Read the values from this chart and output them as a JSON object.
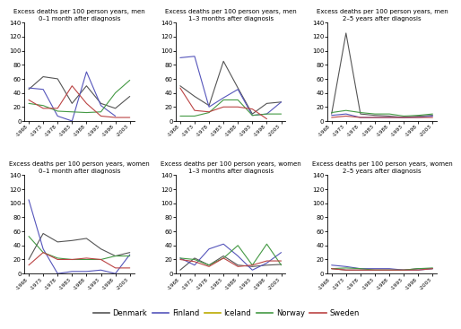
{
  "x_labels": [
    "-1968",
    "-1973",
    "-1978",
    "-1983",
    "-1988",
    "-1993",
    "-1998",
    "-2003"
  ],
  "x_values": [
    0,
    1,
    2,
    3,
    4,
    5,
    6,
    7
  ],
  "ylim": [
    0,
    140
  ],
  "yticks": [
    0,
    20,
    40,
    60,
    80,
    100,
    120,
    140
  ],
  "panels": [
    {
      "title_line1": "Excess deaths per 100 person years, men",
      "title_line2": "0–1 month after diagnosis",
      "denmark": [
        45,
        63,
        60,
        25,
        50,
        25,
        18,
        35
      ],
      "finland": [
        47,
        45,
        7,
        0,
        70,
        22,
        7,
        null
      ],
      "iceland": [
        null,
        null,
        null,
        null,
        null,
        null,
        null,
        null
      ],
      "norway": [
        25,
        22,
        14,
        13,
        12,
        13,
        40,
        58
      ],
      "sweden": [
        30,
        18,
        18,
        50,
        25,
        7,
        5,
        5
      ]
    },
    {
      "title_line1": "Excess deaths per 100 person years, men",
      "title_line2": "1–3 months after diagnosis",
      "denmark": [
        50,
        35,
        22,
        85,
        47,
        10,
        25,
        27
      ],
      "finland": [
        90,
        92,
        20,
        33,
        45,
        8,
        10,
        27
      ],
      "iceland": [
        null,
        null,
        null,
        null,
        null,
        null,
        null,
        null
      ],
      "norway": [
        7,
        7,
        12,
        30,
        30,
        8,
        10,
        10
      ],
      "sweden": [
        47,
        15,
        13,
        20,
        20,
        17,
        3,
        null
      ]
    },
    {
      "title_line1": "Excess deaths per 100 person years, men",
      "title_line2": "2–5 years after diagnosis",
      "denmark": [
        10,
        125,
        10,
        8,
        7,
        5,
        7,
        8
      ],
      "finland": [
        8,
        10,
        5,
        5,
        5,
        5,
        5,
        7
      ],
      "iceland": [
        null,
        null,
        null,
        null,
        null,
        null,
        null,
        null
      ],
      "norway": [
        12,
        15,
        12,
        10,
        10,
        7,
        8,
        10
      ],
      "sweden": [
        5,
        7,
        5,
        5,
        5,
        5,
        5,
        5
      ]
    },
    {
      "title_line1": "Excess deaths per 100 person years, women",
      "title_line2": "0–1 month after diagnosis",
      "denmark": [
        20,
        57,
        45,
        47,
        50,
        35,
        25,
        30
      ],
      "finland": [
        105,
        35,
        0,
        3,
        3,
        5,
        0,
        27
      ],
      "iceland": [
        null,
        null,
        null,
        null,
        null,
        null,
        null,
        null
      ],
      "norway": [
        53,
        30,
        22,
        20,
        20,
        20,
        25,
        25
      ],
      "sweden": [
        12,
        30,
        20,
        20,
        22,
        20,
        8,
        8
      ]
    },
    {
      "title_line1": "Excess deaths per 100 person years, women",
      "title_line2": "1–3 months after diagnosis",
      "denmark": [
        5,
        22,
        12,
        25,
        12,
        10,
        12,
        13
      ],
      "finland": [
        22,
        12,
        35,
        42,
        25,
        5,
        15,
        30
      ],
      "iceland": [
        null,
        null,
        null,
        null,
        null,
        null,
        null,
        null
      ],
      "norway": [
        22,
        20,
        12,
        22,
        40,
        12,
        42,
        12
      ],
      "sweden": [
        20,
        17,
        10,
        22,
        10,
        12,
        18,
        18
      ]
    },
    {
      "title_line1": "Excess deaths per 100 person years, women",
      "title_line2": "2–5 years after diagnosis",
      "denmark": [
        7,
        5,
        5,
        5,
        5,
        5,
        7,
        7
      ],
      "finland": [
        12,
        10,
        7,
        7,
        7,
        5,
        5,
        7
      ],
      "iceland": [
        null,
        null,
        null,
        null,
        null,
        null,
        null,
        null
      ],
      "norway": [
        7,
        8,
        7,
        5,
        5,
        5,
        7,
        8
      ],
      "sweden": [
        7,
        5,
        5,
        5,
        5,
        5,
        5,
        7
      ]
    }
  ],
  "colors": {
    "denmark": "#555555",
    "finland": "#5555bb",
    "iceland": "#bbaa00",
    "norway": "#449944",
    "sweden": "#bb4444"
  },
  "legend_labels": [
    "Denmark",
    "Finland",
    "Iceland",
    "Norway",
    "Sweden"
  ]
}
